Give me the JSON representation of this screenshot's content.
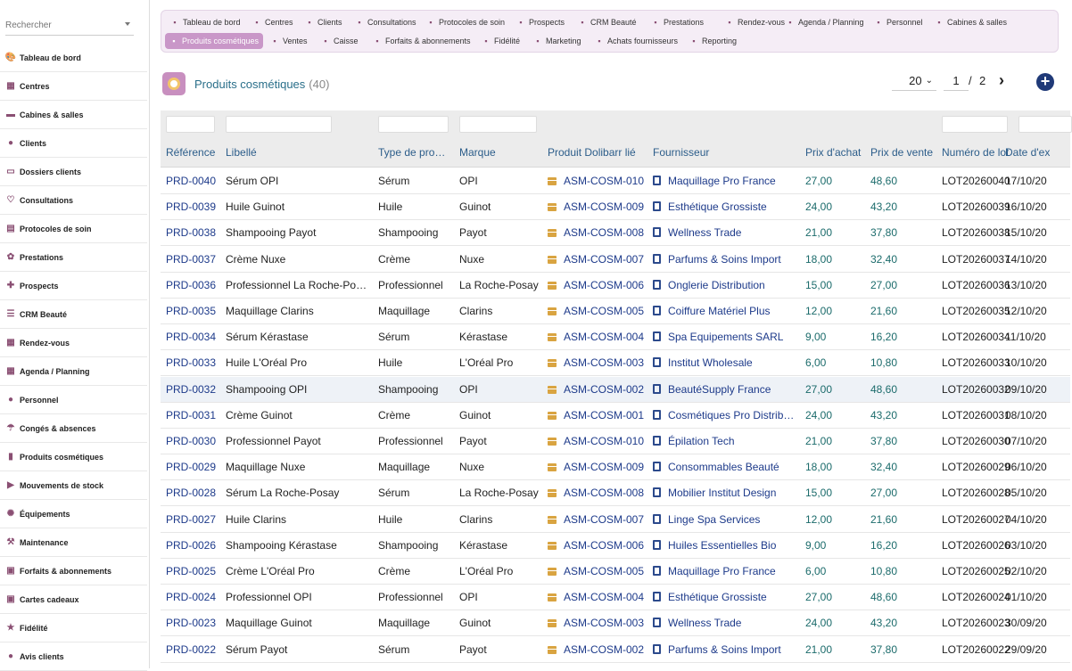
{
  "sidebar": {
    "search_placeholder": "Rechercher",
    "items": [
      {
        "label": "Tableau de bord",
        "icon": "palette-icon"
      },
      {
        "label": "Centres",
        "icon": "building-icon"
      },
      {
        "label": "Cabines & salles",
        "icon": "armchair-icon"
      },
      {
        "label": "Clients",
        "icon": "user-icon"
      },
      {
        "label": "Dossiers clients",
        "icon": "folder-icon"
      },
      {
        "label": "Consultations",
        "icon": "stethoscope-icon"
      },
      {
        "label": "Protocoles de soin",
        "icon": "clipboard-icon"
      },
      {
        "label": "Prestations",
        "icon": "lotus-icon"
      },
      {
        "label": "Prospects",
        "icon": "user-plus-icon"
      },
      {
        "label": "CRM Beauté",
        "icon": "list-icon"
      },
      {
        "label": "Rendez-vous",
        "icon": "calendar-icon"
      },
      {
        "label": "Agenda / Planning",
        "icon": "calendar-icon"
      },
      {
        "label": "Personnel",
        "icon": "user-tie-icon"
      },
      {
        "label": "Congés & absences",
        "icon": "umbrella-icon"
      },
      {
        "label": "Produits cosmétiques",
        "icon": "bottle-icon"
      },
      {
        "label": "Mouvements de stock",
        "icon": "truck-icon"
      },
      {
        "label": "Équipements",
        "icon": "gears-icon"
      },
      {
        "label": "Maintenance",
        "icon": "wrench-icon"
      },
      {
        "label": "Forfaits & abonnements",
        "icon": "ticket-icon"
      },
      {
        "label": "Cartes cadeaux",
        "icon": "gift-icon"
      },
      {
        "label": "Fidélité",
        "icon": "star-icon"
      },
      {
        "label": "Avis clients",
        "icon": "comment-icon"
      }
    ]
  },
  "topbar": {
    "row1": [
      "Tableau de bord",
      "Centres",
      "Clients",
      "Consultations",
      "Protocoles de soin",
      "Prospects",
      "CRM Beauté",
      "Prestations",
      "Rendez-vous",
      "Agenda / Planning",
      "Personnel",
      "Cabines & salles"
    ],
    "row2": [
      "Produits cosmétiques",
      "Ventes",
      "Caisse",
      "Forfaits & abonnements",
      "Fidélité",
      "Marketing",
      "Achats fournisseurs",
      "Reporting"
    ]
  },
  "page": {
    "title": "Produits cosmétiques",
    "count": "(40)"
  },
  "pager": {
    "size": "20",
    "page": "1",
    "sep": "/",
    "total": "2",
    "next": "›",
    "add": "+"
  },
  "columns": [
    "Référence",
    "Libellé",
    "Type de pro…",
    "Marque",
    "Produit Dolibarr lié",
    "Fournisseur",
    "Prix d'achat",
    "Prix de vente",
    "Numéro de lot",
    "Date d'ex"
  ],
  "rows": [
    [
      "PRD-0040",
      "Sérum OPI",
      "Sérum",
      "OPI",
      "ASM-COSM-010",
      "Maquillage Pro France",
      "27,00",
      "48,60",
      "LOT20260040",
      "17/10/20"
    ],
    [
      "PRD-0039",
      "Huile Guinot",
      "Huile",
      "Guinot",
      "ASM-COSM-009",
      "Esthétique Grossiste",
      "24,00",
      "43,20",
      "LOT20260039",
      "16/10/20"
    ],
    [
      "PRD-0038",
      "Shampooing Payot",
      "Shampooing",
      "Payot",
      "ASM-COSM-008",
      "Wellness Trade",
      "21,00",
      "37,80",
      "LOT20260038",
      "15/10/20"
    ],
    [
      "PRD-0037",
      "Crème Nuxe",
      "Crème",
      "Nuxe",
      "ASM-COSM-007",
      "Parfums & Soins Import",
      "18,00",
      "32,40",
      "LOT20260037",
      "14/10/20"
    ],
    [
      "PRD-0036",
      "Professionnel La Roche-Po…",
      "Professionnel",
      "La Roche-Posay",
      "ASM-COSM-006",
      "Onglerie Distribution",
      "15,00",
      "27,00",
      "LOT20260036",
      "13/10/20"
    ],
    [
      "PRD-0035",
      "Maquillage Clarins",
      "Maquillage",
      "Clarins",
      "ASM-COSM-005",
      "Coiffure Matériel Plus",
      "12,00",
      "21,60",
      "LOT20260035",
      "12/10/20"
    ],
    [
      "PRD-0034",
      "Sérum Kérastase",
      "Sérum",
      "Kérastase",
      "ASM-COSM-004",
      "Spa Equipements SARL",
      "9,00",
      "16,20",
      "LOT20260034",
      "11/10/20"
    ],
    [
      "PRD-0033",
      "Huile L'Oréal Pro",
      "Huile",
      "L'Oréal Pro",
      "ASM-COSM-003",
      "Institut Wholesale",
      "6,00",
      "10,80",
      "LOT20260033",
      "10/10/20"
    ],
    [
      "PRD-0032",
      "Shampooing OPI",
      "Shampooing",
      "OPI",
      "ASM-COSM-002",
      "BeautéSupply France",
      "27,00",
      "48,60",
      "LOT20260032",
      "09/10/20"
    ],
    [
      "PRD-0031",
      "Crème Guinot",
      "Crème",
      "Guinot",
      "ASM-COSM-001",
      "Cosmétiques Pro Distrib…",
      "24,00",
      "43,20",
      "LOT20260031",
      "08/10/20"
    ],
    [
      "PRD-0030",
      "Professionnel Payot",
      "Professionnel",
      "Payot",
      "ASM-COSM-010",
      "Épilation Tech",
      "21,00",
      "37,80",
      "LOT20260030",
      "07/10/20"
    ],
    [
      "PRD-0029",
      "Maquillage Nuxe",
      "Maquillage",
      "Nuxe",
      "ASM-COSM-009",
      "Consommables Beauté",
      "18,00",
      "32,40",
      "LOT20260029",
      "06/10/20"
    ],
    [
      "PRD-0028",
      "Sérum La Roche-Posay",
      "Sérum",
      "La Roche-Posay",
      "ASM-COSM-008",
      "Mobilier Institut Design",
      "15,00",
      "27,00",
      "LOT20260028",
      "05/10/20"
    ],
    [
      "PRD-0027",
      "Huile Clarins",
      "Huile",
      "Clarins",
      "ASM-COSM-007",
      "Linge Spa Services",
      "12,00",
      "21,60",
      "LOT20260027",
      "04/10/20"
    ],
    [
      "PRD-0026",
      "Shampooing Kérastase",
      "Shampooing",
      "Kérastase",
      "ASM-COSM-006",
      "Huiles Essentielles Bio",
      "9,00",
      "16,20",
      "LOT20260026",
      "03/10/20"
    ],
    [
      "PRD-0025",
      "Crème L'Oréal Pro",
      "Crème",
      "L'Oréal Pro",
      "ASM-COSM-005",
      "Maquillage Pro France",
      "6,00",
      "10,80",
      "LOT20260025",
      "02/10/20"
    ],
    [
      "PRD-0024",
      "Professionnel OPI",
      "Professionnel",
      "OPI",
      "ASM-COSM-004",
      "Esthétique Grossiste",
      "27,00",
      "48,60",
      "LOT20260024",
      "01/10/20"
    ],
    [
      "PRD-0023",
      "Maquillage Guinot",
      "Maquillage",
      "Guinot",
      "ASM-COSM-003",
      "Wellness Trade",
      "24,00",
      "43,20",
      "LOT20260023",
      "30/09/20"
    ],
    [
      "PRD-0022",
      "Sérum Payot",
      "Sérum",
      "Payot",
      "ASM-COSM-002",
      "Parfums & Soins Import",
      "21,00",
      "37,80",
      "LOT20260022",
      "29/09/20"
    ]
  ],
  "highlighted_row": 8,
  "colors": {
    "accent": "#c997c8",
    "link": "#1d3a8a",
    "price": "#1b6b6b",
    "header_text": "#2c5d8a"
  }
}
